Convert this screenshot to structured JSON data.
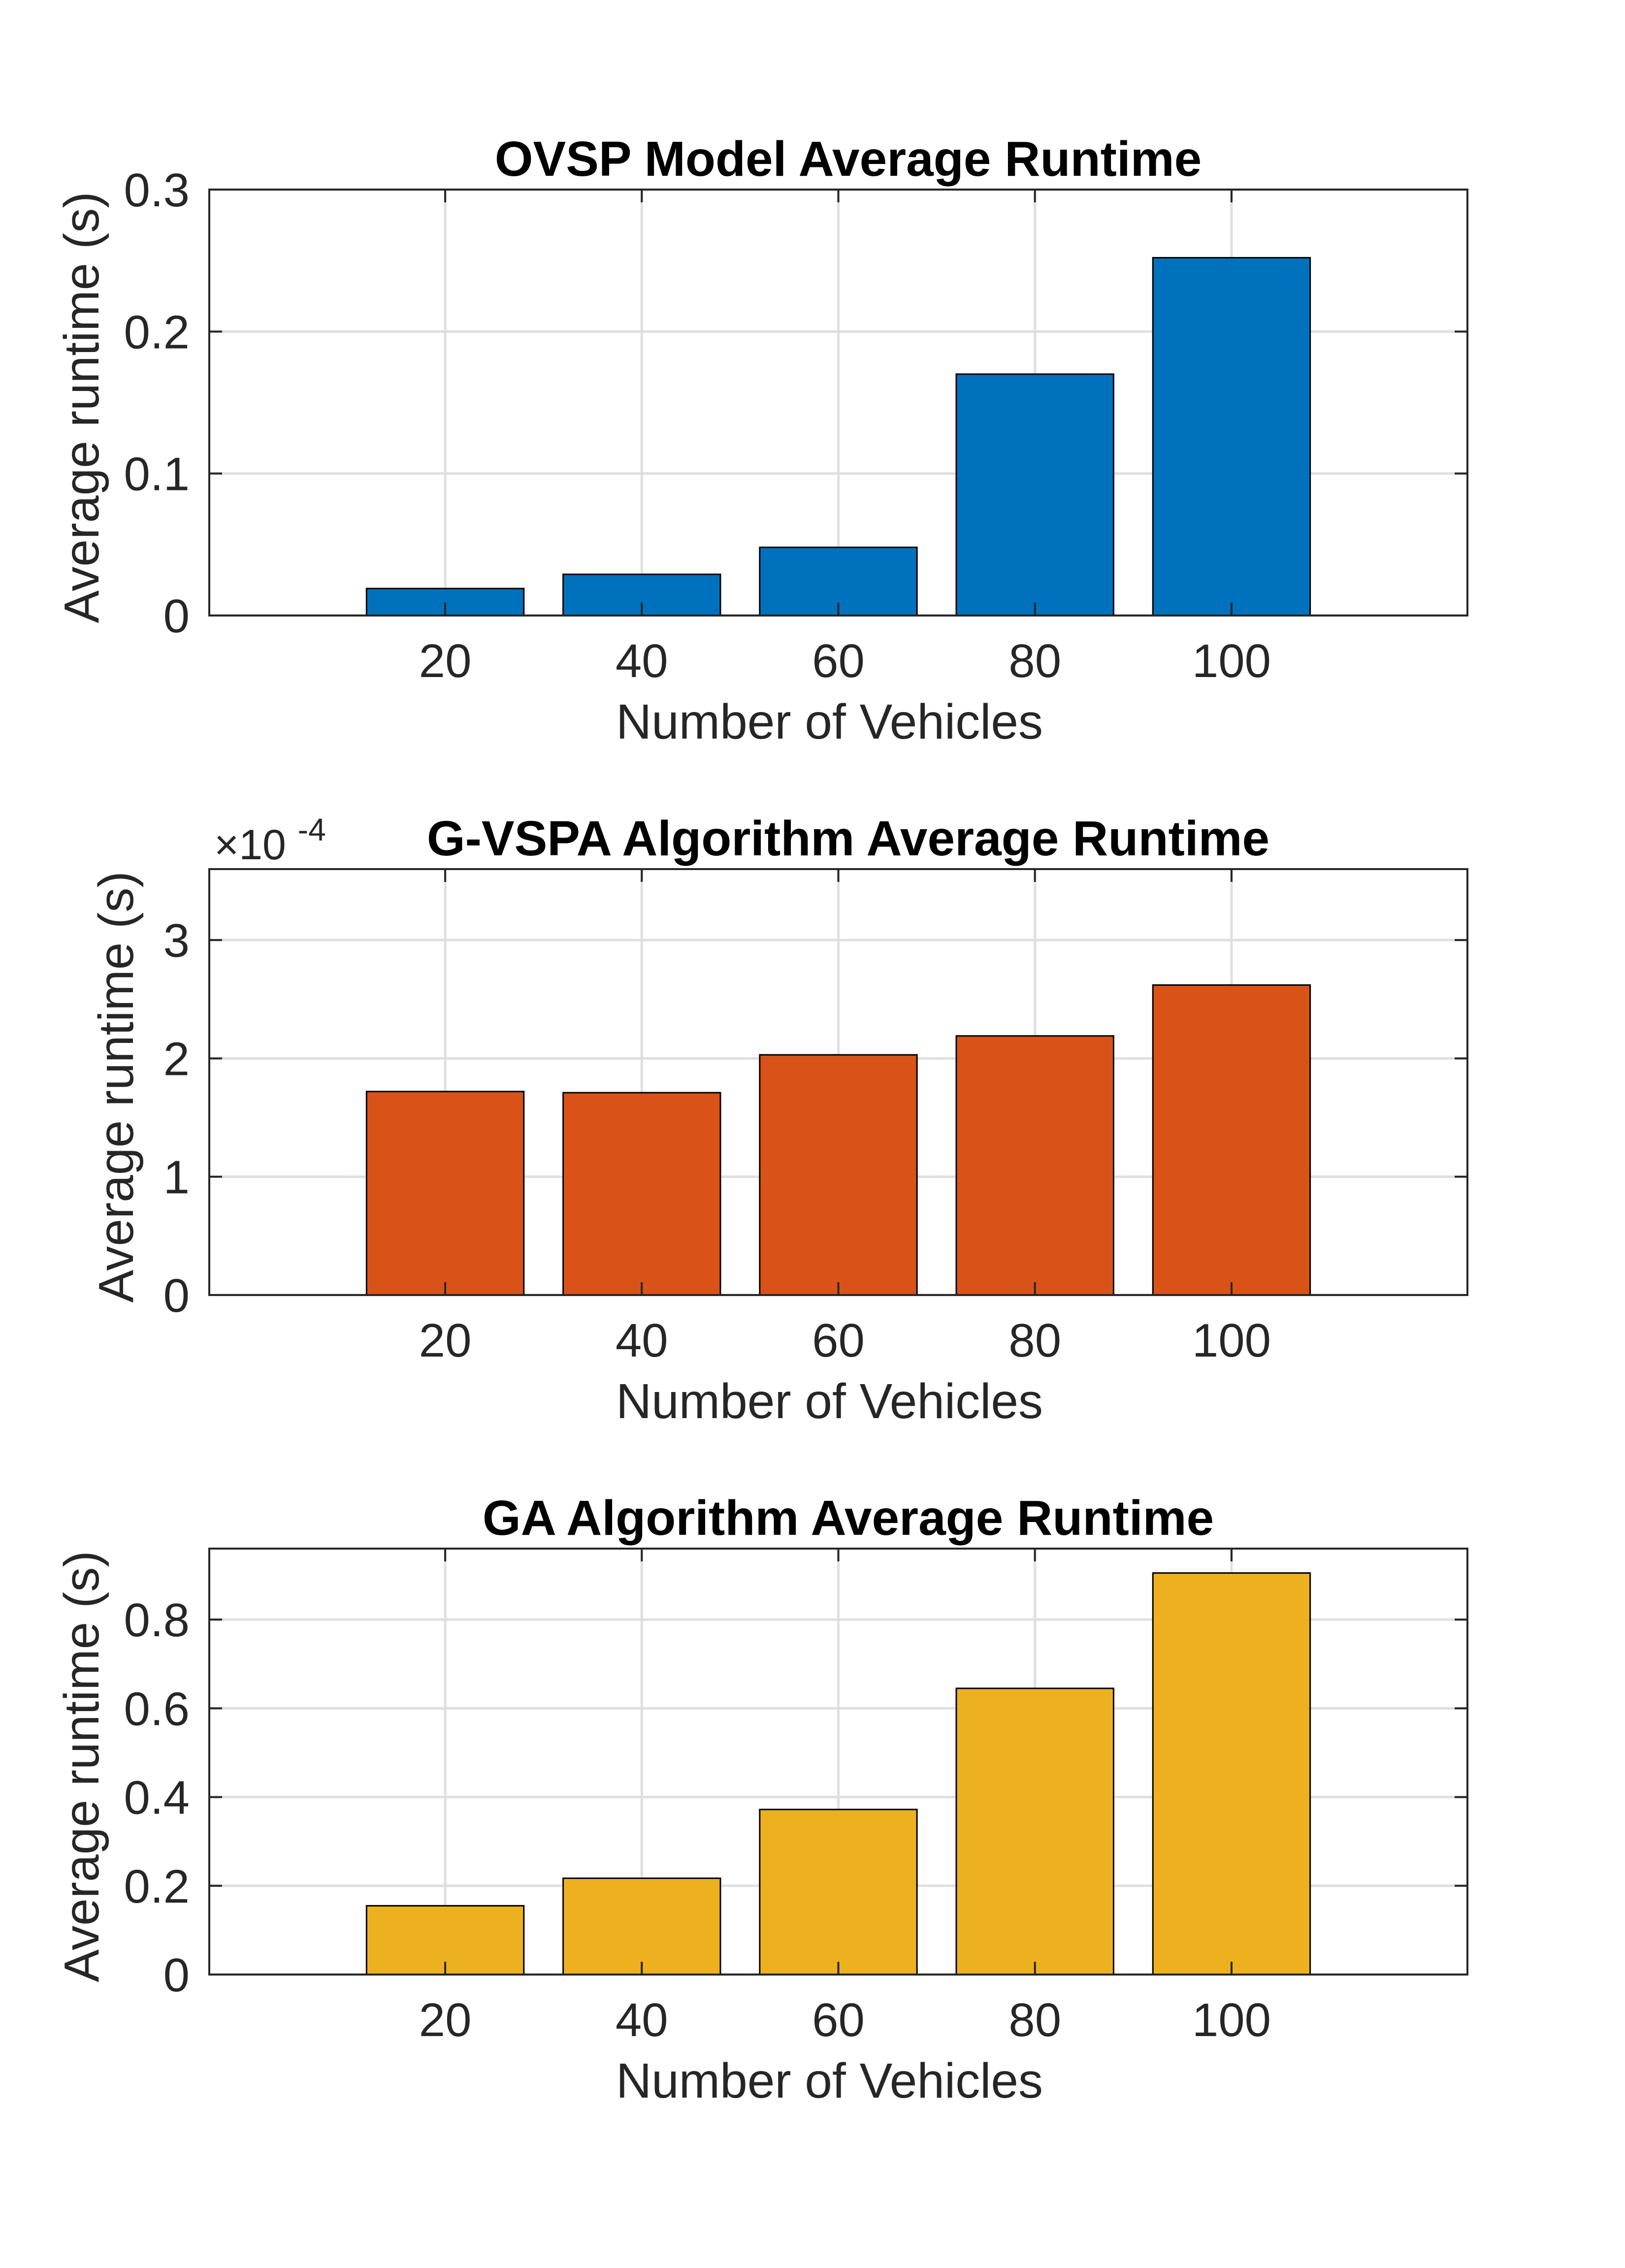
{
  "chart_data": [
    {
      "type": "bar",
      "title": "OVSP Model Average Runtime",
      "xlabel": "Number of Vehicles",
      "ylabel": "Average runtime (s)",
      "categories": [
        "20",
        "40",
        "60",
        "80",
        "100"
      ],
      "x": [
        20,
        40,
        60,
        80,
        100
      ],
      "xlim": [
        -4,
        124
      ],
      "values": [
        0.019,
        0.029,
        0.048,
        0.17,
        0.252
      ],
      "ylim": [
        0,
        0.3
      ],
      "yticks": [
        0,
        0.1,
        0.2,
        0.3
      ],
      "ytick_labels": [
        "0",
        "0.1",
        "0.2",
        "0.3"
      ],
      "exponent_label": "",
      "grid": true,
      "bar_color": "#0072BD"
    },
    {
      "type": "bar",
      "title": "G-VSPA Algorithm Average Runtime",
      "xlabel": "Number of Vehicles",
      "ylabel": "Average runtime (s)",
      "categories": [
        "20",
        "40",
        "60",
        "80",
        "100"
      ],
      "x": [
        20,
        40,
        60,
        80,
        100
      ],
      "xlim": [
        -4,
        124
      ],
      "values": [
        0.000172,
        0.000171,
        0.000203,
        0.000219,
        0.000262
      ],
      "ylim": [
        0,
        0.00036
      ],
      "yticks": [
        0,
        0.0001,
        0.0002,
        0.0003
      ],
      "ytick_labels": [
        "0",
        "1",
        "2",
        "3"
      ],
      "exponent_label": "×10",
      "exponent_power": "-4",
      "grid": true,
      "bar_color": "#D95319"
    },
    {
      "type": "bar",
      "title": "GA Algorithm Average Runtime",
      "xlabel": "Number of Vehicles",
      "ylabel": "Average runtime (s)",
      "categories": [
        "20",
        "40",
        "60",
        "80",
        "100"
      ],
      "x": [
        20,
        40,
        60,
        80,
        100
      ],
      "xlim": [
        -4,
        124
      ],
      "values": [
        0.155,
        0.217,
        0.372,
        0.645,
        0.905
      ],
      "ylim": [
        0,
        0.96
      ],
      "yticks": [
        0,
        0.2,
        0.4,
        0.6,
        0.8
      ],
      "ytick_labels": [
        "0",
        "0.2",
        "0.4",
        "0.6",
        "0.8"
      ],
      "exponent_label": "",
      "grid": true,
      "bar_color": "#EDB120"
    }
  ]
}
